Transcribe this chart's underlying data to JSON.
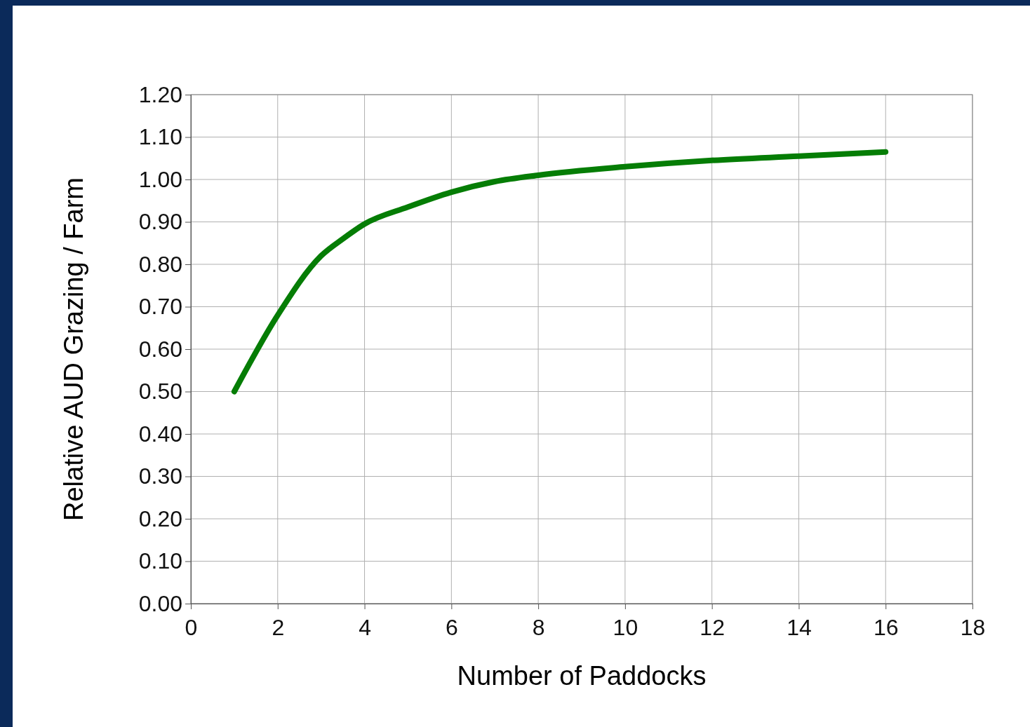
{
  "chart_data": {
    "type": "line",
    "xlabel": "Number of Paddocks",
    "ylabel": "Relative AUD Grazing / Farm",
    "xlim": [
      0,
      18
    ],
    "xticks": [
      0,
      2,
      4,
      6,
      8,
      10,
      12,
      14,
      16,
      18
    ],
    "ylim": [
      0,
      1.2
    ],
    "yticks": [
      {
        "value": 0,
        "label": "0.00"
      },
      {
        "value": 0.1,
        "label": "0.10"
      },
      {
        "value": 0.2,
        "label": "0.20"
      },
      {
        "value": 0.3,
        "label": "0.30"
      },
      {
        "value": 0.4,
        "label": "0.40"
      },
      {
        "value": 0.5,
        "label": "0.50"
      },
      {
        "value": 0.6,
        "label": "0.60"
      },
      {
        "value": 0.7,
        "label": "0.70"
      },
      {
        "value": 0.8,
        "label": "0.80"
      },
      {
        "value": 0.9,
        "label": "0.90"
      },
      {
        "value": 1,
        "label": "1.00"
      },
      {
        "value": 1.1,
        "label": "1.10"
      },
      {
        "value": 1.2,
        "label": "1.20"
      }
    ],
    "grid": true,
    "marker": "none",
    "line_style": "solid",
    "series": [
      {
        "color": "#057d05",
        "x": [
          1,
          2,
          3,
          3.5,
          4,
          5,
          6,
          7,
          8,
          10,
          12,
          14,
          16
        ],
        "values": [
          0.5,
          0.68,
          0.82,
          0.86,
          0.895,
          0.935,
          0.97,
          0.995,
          1.01,
          1.03,
          1.045,
          1.055,
          1.065
        ]
      }
    ]
  }
}
